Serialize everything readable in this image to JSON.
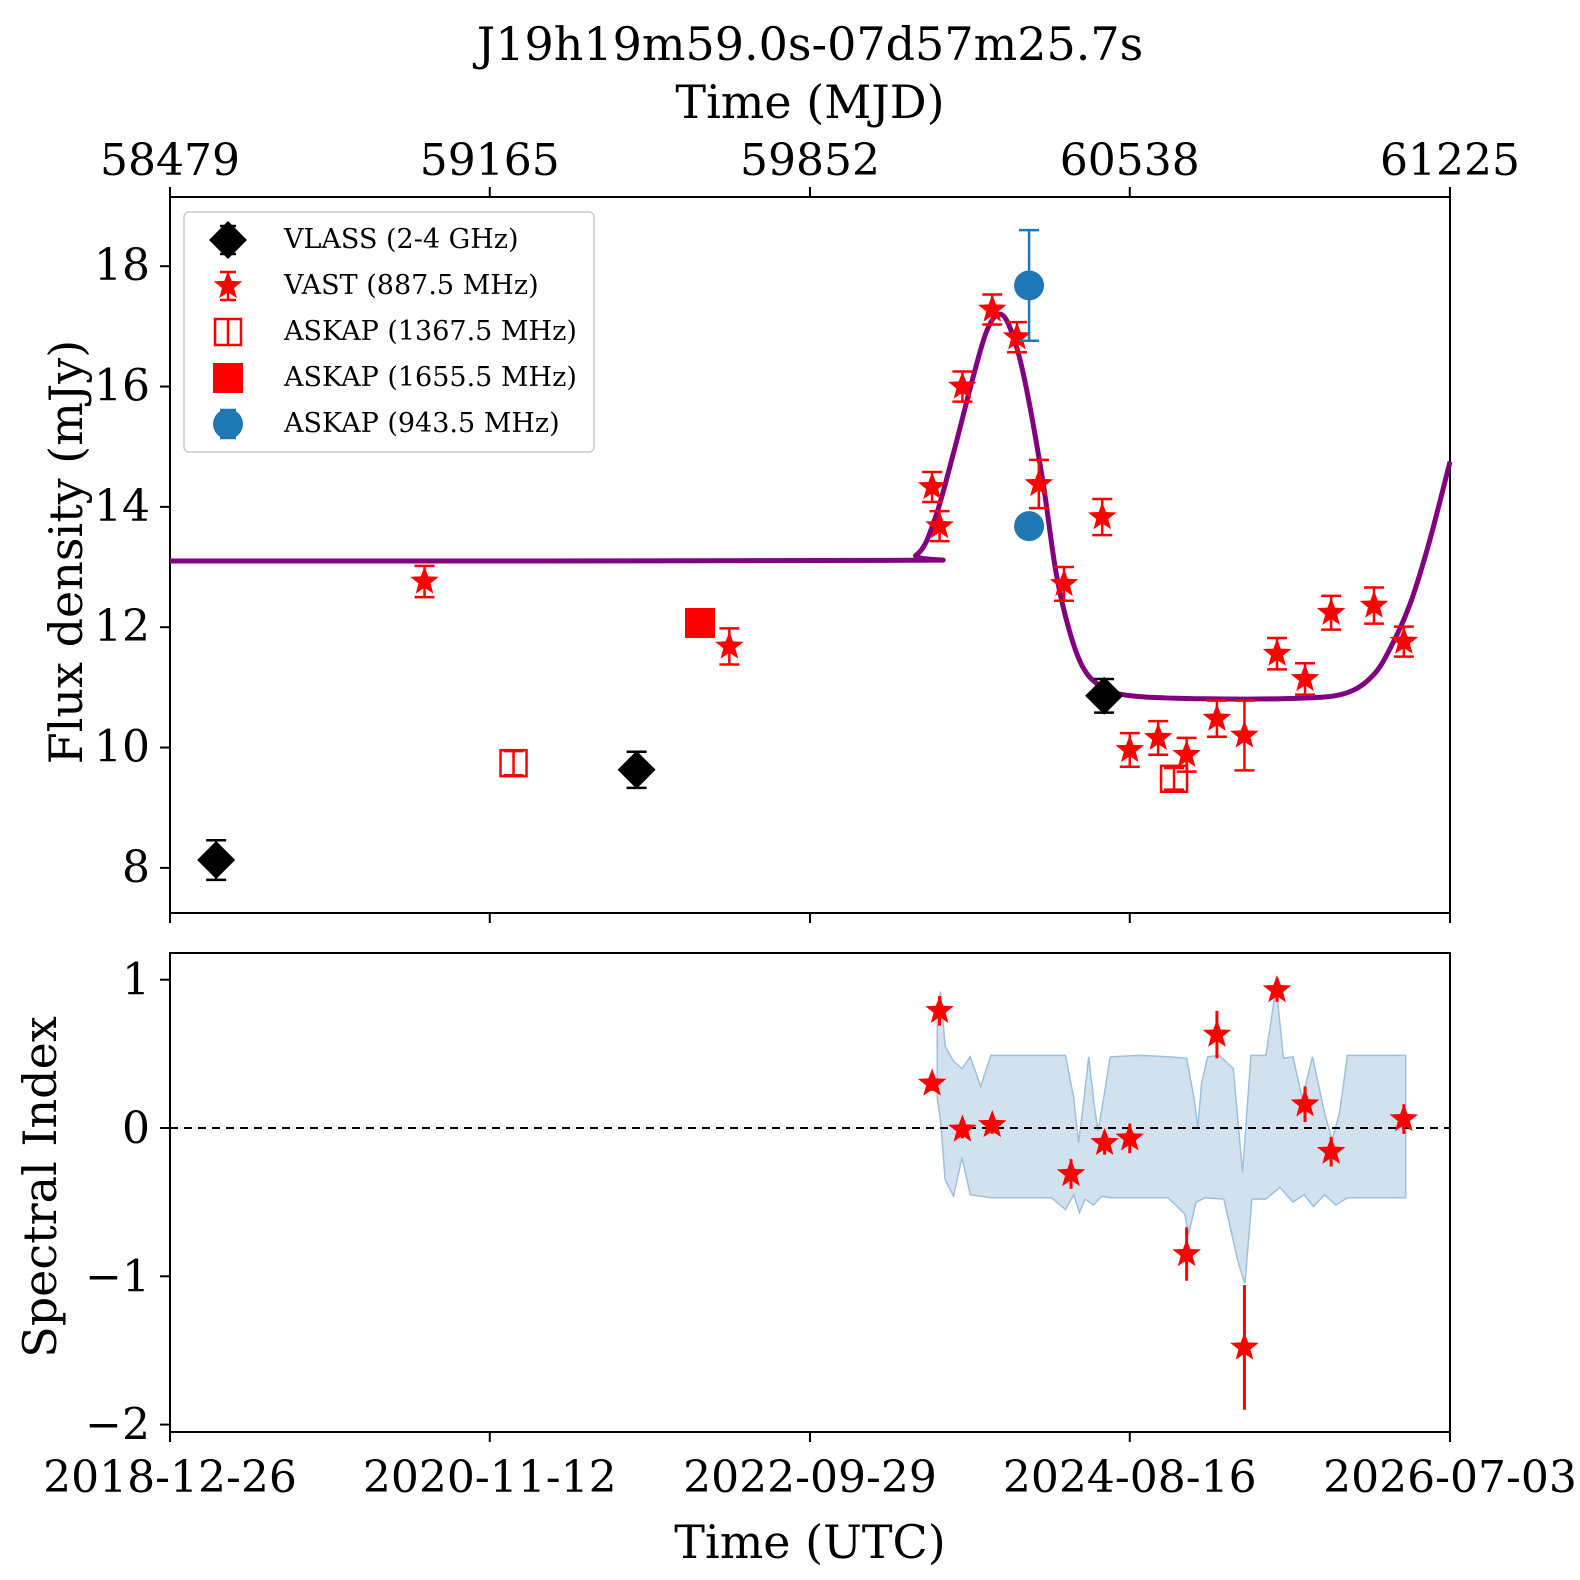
{
  "title": "J19h19m59.0s-07d57m25.7s",
  "top_axis_label": "Time (MJD)",
  "bottom_axis_label": "Time (UTC)",
  "top_ticks": [
    "58479",
    "59165",
    "59852",
    "60538",
    "61225"
  ],
  "bottom_ticks": [
    "2018-12-26",
    "2020-11-12",
    "2022-09-29",
    "2024-08-16",
    "2026-07-03"
  ],
  "colors": {
    "vlass": "#000000",
    "vast": "#ff0000",
    "askap_1367": "#ff0000",
    "askap_1655": "#ff0000",
    "askap_943": "#1f77b4",
    "model": "#800080",
    "band": "#b3cde3",
    "zero_line": "#000000"
  },
  "chart_data": [
    {
      "type": "scatter",
      "panel": "flux",
      "ylabel": "Flux density (mJy)",
      "xlabel_top": "Time (MJD)",
      "xlim_mjd": [
        58479,
        61225
      ],
      "ylim": [
        7.25,
        19.15
      ],
      "y_ticks": [
        8,
        10,
        12,
        14,
        16,
        18
      ],
      "legend_placement": "top-left",
      "legend": [
        {
          "label": "VLASS (2-4 GHz)",
          "marker": "diamond",
          "color": "#000000"
        },
        {
          "label": "VAST (887.5 MHz)",
          "marker": "star",
          "color": "#ff0000"
        },
        {
          "label": "ASKAP (1367.5 MHz)",
          "marker": "open-square",
          "color": "#ff0000"
        },
        {
          "label": "ASKAP (1655.5 MHz)",
          "marker": "filled-square",
          "color": "#ff0000"
        },
        {
          "label": "ASKAP (943.5 MHz)",
          "marker": "circle",
          "color": "#1f77b4"
        }
      ],
      "series": [
        {
          "name": "VLASS (2-4 GHz)",
          "marker": "diamond",
          "points": [
            {
              "mjd": 58578,
              "y": 8.13,
              "err": 0.33
            },
            {
              "mjd": 59480,
              "y": 9.63,
              "err": 0.3
            },
            {
              "mjd": 60483,
              "y": 10.86,
              "err": 0.28
            }
          ]
        },
        {
          "name": "VAST (887.5 MHz)",
          "marker": "star",
          "points": [
            {
              "mjd": 59025,
              "y": 12.76,
              "err": 0.26
            },
            {
              "mjd": 59679,
              "y": 11.68,
              "err": 0.3
            },
            {
              "mjd": 60114,
              "y": 14.33,
              "err": 0.25
            },
            {
              "mjd": 60130,
              "y": 13.68,
              "err": 0.25
            },
            {
              "mjd": 60179,
              "y": 16.0,
              "err": 0.25
            },
            {
              "mjd": 60243,
              "y": 17.28,
              "err": 0.25
            },
            {
              "mjd": 60296,
              "y": 16.82,
              "err": 0.25
            },
            {
              "mjd": 60343,
              "y": 14.38,
              "err": 0.4
            },
            {
              "mjd": 60397,
              "y": 12.72,
              "err": 0.28
            },
            {
              "mjd": 60479,
              "y": 13.83,
              "err": 0.3
            },
            {
              "mjd": 60538,
              "y": 9.96,
              "err": 0.28
            },
            {
              "mjd": 60599,
              "y": 10.16,
              "err": 0.28
            },
            {
              "mjd": 60660,
              "y": 9.88,
              "err": 0.28
            },
            {
              "mjd": 60725,
              "y": 10.48,
              "err": 0.3
            },
            {
              "mjd": 60784,
              "y": 10.2,
              "err": 0.58
            },
            {
              "mjd": 60854,
              "y": 11.56,
              "err": 0.26
            },
            {
              "mjd": 60914,
              "y": 11.14,
              "err": 0.26
            },
            {
              "mjd": 60970,
              "y": 12.24,
              "err": 0.28
            },
            {
              "mjd": 61062,
              "y": 12.36,
              "err": 0.3
            },
            {
              "mjd": 61126,
              "y": 11.76,
              "err": 0.25
            }
          ]
        },
        {
          "name": "ASKAP (1367.5 MHz)",
          "marker": "open-square",
          "points": [
            {
              "mjd": 59216,
              "y": 9.74,
              "err": 0.2
            },
            {
              "mjd": 60633,
              "y": 9.48,
              "err": 0.18
            }
          ]
        },
        {
          "name": "ASKAP (1655.5 MHz)",
          "marker": "filled-square",
          "points": [
            {
              "mjd": 59616,
              "y": 12.07,
              "err": 0.15
            }
          ]
        },
        {
          "name": "ASKAP (943.5 MHz)",
          "marker": "circle",
          "points": [
            {
              "mjd": 60322,
              "y": 17.68,
              "err": 0.92
            },
            {
              "mjd": 60322,
              "y": 13.68,
              "err": 0.1
            }
          ]
        }
      ],
      "model_curve": {
        "baseline_early": 13.1,
        "peak_mjd": 60256,
        "peak_y": 17.2,
        "baseline_late": 10.8,
        "points": [
          [
            58479,
            13.1
          ],
          [
            60000,
            13.11
          ],
          [
            60080,
            13.2
          ],
          [
            60120,
            13.8
          ],
          [
            60160,
            14.9
          ],
          [
            60200,
            16.1
          ],
          [
            60230,
            16.9
          ],
          [
            60256,
            17.2
          ],
          [
            60280,
            17.0
          ],
          [
            60310,
            16.2
          ],
          [
            60350,
            14.5
          ],
          [
            60380,
            12.9
          ],
          [
            60410,
            11.9
          ],
          [
            60440,
            11.3
          ],
          [
            60480,
            11.0
          ],
          [
            60540,
            10.86
          ],
          [
            60700,
            10.81
          ],
          [
            60900,
            10.82
          ],
          [
            61000,
            10.9
          ],
          [
            61060,
            11.2
          ],
          [
            61100,
            11.7
          ],
          [
            61140,
            12.4
          ],
          [
            61180,
            13.4
          ],
          [
            61225,
            14.75
          ]
        ]
      }
    },
    {
      "type": "scatter",
      "panel": "spectral_index",
      "ylabel": "Spectral Index",
      "xlabel": "Time (UTC)",
      "xlim_mjd": [
        58479,
        61225
      ],
      "ylim": [
        -2.05,
        1.18
      ],
      "y_ticks": [
        -2,
        -1,
        0,
        1
      ],
      "reference_line": 0,
      "series": [
        {
          "name": "Spectral index",
          "marker": "star",
          "points": [
            {
              "mjd": 60114,
              "y": 0.3,
              "err": 0.05
            },
            {
              "mjd": 60130,
              "y": 0.79,
              "err": 0.1
            },
            {
              "mjd": 60179,
              "y": -0.01,
              "err": 0.06
            },
            {
              "mjd": 60243,
              "y": 0.02,
              "err": 0.06
            },
            {
              "mjd": 60412,
              "y": -0.31,
              "err": 0.1
            },
            {
              "mjd": 60484,
              "y": -0.1,
              "err": 0.08
            },
            {
              "mjd": 60538,
              "y": -0.07,
              "err": 0.1
            },
            {
              "mjd": 60660,
              "y": -0.85,
              "err": 0.18
            },
            {
              "mjd": 60725,
              "y": 0.63,
              "err": 0.16
            },
            {
              "mjd": 60784,
              "y": -1.48,
              "err": 0.42
            },
            {
              "mjd": 60854,
              "y": 0.93,
              "err": 0.08
            },
            {
              "mjd": 60914,
              "y": 0.16,
              "err": 0.12
            },
            {
              "mjd": 60970,
              "y": -0.16,
              "err": 0.1
            },
            {
              "mjd": 61126,
              "y": 0.06,
              "err": 0.1
            }
          ]
        }
      ],
      "uncertainty_band": {
        "upper": [
          [
            60125,
            0.78
          ],
          [
            60132,
            0.92
          ],
          [
            60142,
            0.55
          ],
          [
            60160,
            0.45
          ],
          [
            60178,
            0.4
          ],
          [
            60196,
            0.48
          ],
          [
            60218,
            0.28
          ],
          [
            60240,
            0.49
          ],
          [
            60400,
            0.49
          ],
          [
            60418,
            0.2
          ],
          [
            60428,
            -0.1
          ],
          [
            60440,
            0.2
          ],
          [
            60450,
            0.48
          ],
          [
            60462,
            0.15
          ],
          [
            60470,
            -0.02
          ],
          [
            60482,
            0.2
          ],
          [
            60496,
            0.48
          ],
          [
            60560,
            0.49
          ],
          [
            60620,
            0.48
          ],
          [
            60660,
            0.47
          ],
          [
            60676,
            0.2
          ],
          [
            60684,
            0.0
          ],
          [
            60692,
            0.3
          ],
          [
            60705,
            0.48
          ],
          [
            60730,
            0.49
          ],
          [
            60760,
            0.4
          ],
          [
            60780,
            -0.3
          ],
          [
            60798,
            0.49
          ],
          [
            60830,
            0.49
          ],
          [
            60852,
            0.95
          ],
          [
            60868,
            0.47
          ],
          [
            60888,
            0.48
          ],
          [
            60908,
            0.2
          ],
          [
            60930,
            0.48
          ],
          [
            60956,
            0.1
          ],
          [
            60972,
            -0.08
          ],
          [
            60988,
            0.1
          ],
          [
            61005,
            0.49
          ],
          [
            61130,
            0.49
          ]
        ],
        "lower": [
          [
            60125,
            0.2
          ],
          [
            60132,
            0.05
          ],
          [
            60142,
            -0.35
          ],
          [
            60160,
            -0.46
          ],
          [
            60178,
            -0.2
          ],
          [
            60196,
            -0.45
          ],
          [
            60218,
            -0.46
          ],
          [
            60240,
            -0.47
          ],
          [
            60370,
            -0.47
          ],
          [
            60400,
            -0.55
          ],
          [
            60418,
            -0.45
          ],
          [
            60430,
            -0.57
          ],
          [
            60442,
            -0.48
          ],
          [
            60460,
            -0.52
          ],
          [
            60478,
            -0.46
          ],
          [
            60496,
            -0.47
          ],
          [
            60620,
            -0.47
          ],
          [
            60656,
            -0.58
          ],
          [
            60664,
            -0.72
          ],
          [
            60680,
            -0.5
          ],
          [
            60700,
            -0.47
          ],
          [
            60740,
            -0.48
          ],
          [
            60770,
            -0.9
          ],
          [
            60785,
            -1.05
          ],
          [
            60800,
            -0.48
          ],
          [
            60830,
            -0.48
          ],
          [
            60860,
            -0.4
          ],
          [
            60888,
            -0.5
          ],
          [
            60912,
            -0.45
          ],
          [
            60932,
            -0.53
          ],
          [
            60956,
            -0.45
          ],
          [
            60980,
            -0.52
          ],
          [
            61005,
            -0.47
          ],
          [
            61130,
            -0.47
          ]
        ]
      }
    }
  ]
}
